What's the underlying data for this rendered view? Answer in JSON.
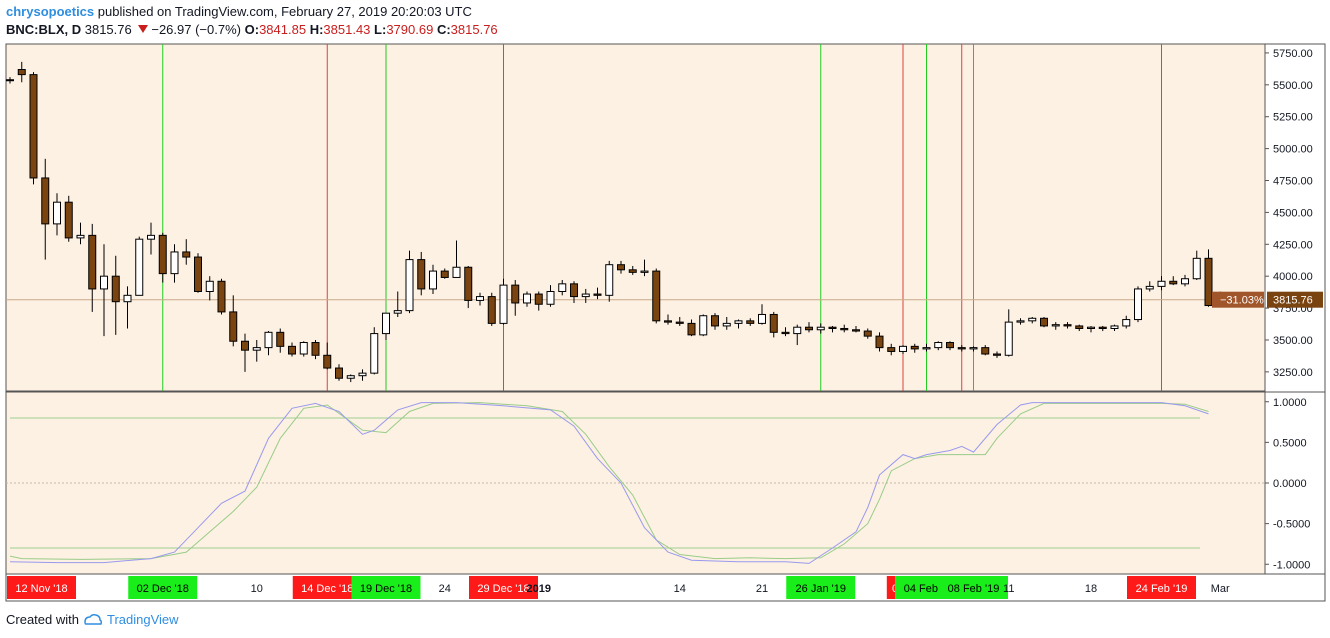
{
  "header": {
    "author": "chrysopoetics",
    "published_text": "published on TradingView.com, February 27, 2019 20:20:03 UTC",
    "symbol": "BNC:BLX, D",
    "last_price": "3815.76",
    "change": "−26.97 (−0.7%)",
    "o_label": "O:",
    "o_value": "3841.85",
    "h_label": "H:",
    "h_value": "3851.43",
    "l_label": "L:",
    "l_value": "3790.69",
    "c_label": "C:",
    "c_value": "3815.76"
  },
  "footer": {
    "created_with": "Created with",
    "brand": "TradingView"
  },
  "colors": {
    "background": "#fdf1e3",
    "bear_body": "#7a4410",
    "bull_body": "#ffffff",
    "candle_outline": "#000000",
    "green_line": "#22cc22",
    "red_line": "#e04040",
    "stoch_k": "#9999ee",
    "stoch_d": "#99cc88",
    "price_tag": "#7a4410",
    "pct_tag": "#a0552a"
  },
  "chart_data": {
    "type": "candlestick",
    "price_axis": {
      "ylim": [
        3100,
        5820
      ],
      "ticks": [
        3250,
        3500,
        3750,
        4000,
        4250,
        4500,
        4750,
        5000,
        5250,
        5500,
        5750
      ],
      "tick_labels": [
        "3250.00",
        "3500.00",
        "3750.00",
        "4000.00",
        "4250.00",
        "4500.00",
        "4750.00",
        "5000.00",
        "5250.00",
        "5500.00",
        "5750.00"
      ]
    },
    "last_price_label": "3815.76",
    "change_pct_label": "−31.03%",
    "candles": [
      {
        "o": 5540,
        "h": 5560,
        "l": 5510,
        "c": 5540
      },
      {
        "o": 5620,
        "h": 5680,
        "l": 5520,
        "c": 5580
      },
      {
        "o": 5580,
        "h": 5600,
        "l": 4720,
        "c": 4770
      },
      {
        "o": 4770,
        "h": 4920,
        "l": 4130,
        "c": 4410
      },
      {
        "o": 4410,
        "h": 4650,
        "l": 4320,
        "c": 4580
      },
      {
        "o": 4580,
        "h": 4630,
        "l": 4270,
        "c": 4300
      },
      {
        "o": 4300,
        "h": 4420,
        "l": 4250,
        "c": 4320
      },
      {
        "o": 4320,
        "h": 4410,
        "l": 3720,
        "c": 3900
      },
      {
        "o": 3900,
        "h": 4250,
        "l": 3530,
        "c": 4000
      },
      {
        "o": 4000,
        "h": 4160,
        "l": 3540,
        "c": 3800
      },
      {
        "o": 3800,
        "h": 3920,
        "l": 3590,
        "c": 3850
      },
      {
        "o": 3850,
        "h": 4310,
        "l": 3850,
        "c": 4290
      },
      {
        "o": 4290,
        "h": 4420,
        "l": 4170,
        "c": 4320
      },
      {
        "o": 4320,
        "h": 4340,
        "l": 3950,
        "c": 4020
      },
      {
        "o": 4020,
        "h": 4250,
        "l": 3950,
        "c": 4190
      },
      {
        "o": 4190,
        "h": 4290,
        "l": 4090,
        "c": 4150
      },
      {
        "o": 4150,
        "h": 4180,
        "l": 3870,
        "c": 3880
      },
      {
        "o": 3880,
        "h": 4000,
        "l": 3810,
        "c": 3960
      },
      {
        "o": 3960,
        "h": 3980,
        "l": 3700,
        "c": 3720
      },
      {
        "o": 3720,
        "h": 3850,
        "l": 3450,
        "c": 3490
      },
      {
        "o": 3490,
        "h": 3550,
        "l": 3250,
        "c": 3420
      },
      {
        "o": 3420,
        "h": 3500,
        "l": 3330,
        "c": 3440
      },
      {
        "o": 3440,
        "h": 3570,
        "l": 3380,
        "c": 3560
      },
      {
        "o": 3560,
        "h": 3590,
        "l": 3400,
        "c": 3450
      },
      {
        "o": 3450,
        "h": 3480,
        "l": 3370,
        "c": 3390
      },
      {
        "o": 3390,
        "h": 3490,
        "l": 3370,
        "c": 3480
      },
      {
        "o": 3480,
        "h": 3500,
        "l": 3350,
        "c": 3380
      },
      {
        "o": 3380,
        "h": 3480,
        "l": 3270,
        "c": 3280
      },
      {
        "o": 3280,
        "h": 3310,
        "l": 3180,
        "c": 3200
      },
      {
        "o": 3200,
        "h": 3230,
        "l": 3170,
        "c": 3220
      },
      {
        "o": 3220,
        "h": 3270,
        "l": 3180,
        "c": 3240
      },
      {
        "o": 3240,
        "h": 3600,
        "l": 3230,
        "c": 3550
      },
      {
        "o": 3550,
        "h": 3710,
        "l": 3500,
        "c": 3710
      },
      {
        "o": 3710,
        "h": 3880,
        "l": 3680,
        "c": 3730
      },
      {
        "o": 3730,
        "h": 4200,
        "l": 3710,
        "c": 4130
      },
      {
        "o": 4130,
        "h": 4190,
        "l": 3850,
        "c": 3900
      },
      {
        "o": 3900,
        "h": 4090,
        "l": 3860,
        "c": 4040
      },
      {
        "o": 4040,
        "h": 4060,
        "l": 3980,
        "c": 3990
      },
      {
        "o": 3990,
        "h": 4280,
        "l": 3990,
        "c": 4070
      },
      {
        "o": 4070,
        "h": 4080,
        "l": 3750,
        "c": 3810
      },
      {
        "o": 3810,
        "h": 3870,
        "l": 3770,
        "c": 3840
      },
      {
        "o": 3840,
        "h": 3870,
        "l": 3610,
        "c": 3630
      },
      {
        "o": 3630,
        "h": 3980,
        "l": 3620,
        "c": 3930
      },
      {
        "o": 3930,
        "h": 3970,
        "l": 3690,
        "c": 3790
      },
      {
        "o": 3790,
        "h": 3880,
        "l": 3760,
        "c": 3860
      },
      {
        "o": 3860,
        "h": 3880,
        "l": 3730,
        "c": 3780
      },
      {
        "o": 3780,
        "h": 3930,
        "l": 3760,
        "c": 3880
      },
      {
        "o": 3880,
        "h": 3970,
        "l": 3850,
        "c": 3940
      },
      {
        "o": 3940,
        "h": 3960,
        "l": 3790,
        "c": 3840
      },
      {
        "o": 3840,
        "h": 3900,
        "l": 3790,
        "c": 3860
      },
      {
        "o": 3860,
        "h": 3910,
        "l": 3820,
        "c": 3850
      },
      {
        "o": 3850,
        "h": 4120,
        "l": 3800,
        "c": 4090
      },
      {
        "o": 4090,
        "h": 4120,
        "l": 4020,
        "c": 4050
      },
      {
        "o": 4050,
        "h": 4080,
        "l": 4010,
        "c": 4030
      },
      {
        "o": 4030,
        "h": 4130,
        "l": 4000,
        "c": 4040
      },
      {
        "o": 4040,
        "h": 4060,
        "l": 3630,
        "c": 3650
      },
      {
        "o": 3650,
        "h": 3700,
        "l": 3620,
        "c": 3640
      },
      {
        "o": 3640,
        "h": 3680,
        "l": 3610,
        "c": 3630
      },
      {
        "o": 3630,
        "h": 3660,
        "l": 3530,
        "c": 3540
      },
      {
        "o": 3540,
        "h": 3700,
        "l": 3530,
        "c": 3690
      },
      {
        "o": 3690,
        "h": 3710,
        "l": 3580,
        "c": 3610
      },
      {
        "o": 3610,
        "h": 3680,
        "l": 3580,
        "c": 3630
      },
      {
        "o": 3630,
        "h": 3660,
        "l": 3590,
        "c": 3650
      },
      {
        "o": 3650,
        "h": 3670,
        "l": 3610,
        "c": 3630
      },
      {
        "o": 3630,
        "h": 3780,
        "l": 3620,
        "c": 3700
      },
      {
        "o": 3700,
        "h": 3720,
        "l": 3520,
        "c": 3560
      },
      {
        "o": 3560,
        "h": 3600,
        "l": 3530,
        "c": 3550
      },
      {
        "o": 3550,
        "h": 3620,
        "l": 3460,
        "c": 3600
      },
      {
        "o": 3600,
        "h": 3640,
        "l": 3560,
        "c": 3580
      },
      {
        "o": 3580,
        "h": 3630,
        "l": 3550,
        "c": 3600
      },
      {
        "o": 3600,
        "h": 3610,
        "l": 3560,
        "c": 3590
      },
      {
        "o": 3590,
        "h": 3620,
        "l": 3560,
        "c": 3580
      },
      {
        "o": 3580,
        "h": 3610,
        "l": 3560,
        "c": 3570
      },
      {
        "o": 3570,
        "h": 3590,
        "l": 3510,
        "c": 3530
      },
      {
        "o": 3530,
        "h": 3560,
        "l": 3410,
        "c": 3440
      },
      {
        "o": 3440,
        "h": 3470,
        "l": 3380,
        "c": 3410
      },
      {
        "o": 3410,
        "h": 3460,
        "l": 3390,
        "c": 3450
      },
      {
        "o": 3450,
        "h": 3470,
        "l": 3400,
        "c": 3430
      },
      {
        "o": 3430,
        "h": 3470,
        "l": 3410,
        "c": 3440
      },
      {
        "o": 3440,
        "h": 3490,
        "l": 3420,
        "c": 3480
      },
      {
        "o": 3480,
        "h": 3490,
        "l": 3420,
        "c": 3440
      },
      {
        "o": 3440,
        "h": 3460,
        "l": 3410,
        "c": 3430
      },
      {
        "o": 3430,
        "h": 3450,
        "l": 3410,
        "c": 3440
      },
      {
        "o": 3440,
        "h": 3460,
        "l": 3380,
        "c": 3390
      },
      {
        "o": 3390,
        "h": 3410,
        "l": 3360,
        "c": 3380
      },
      {
        "o": 3380,
        "h": 3740,
        "l": 3370,
        "c": 3640
      },
      {
        "o": 3640,
        "h": 3670,
        "l": 3620,
        "c": 3650
      },
      {
        "o": 3650,
        "h": 3680,
        "l": 3630,
        "c": 3670
      },
      {
        "o": 3670,
        "h": 3680,
        "l": 3600,
        "c": 3610
      },
      {
        "o": 3610,
        "h": 3640,
        "l": 3580,
        "c": 3620
      },
      {
        "o": 3620,
        "h": 3640,
        "l": 3590,
        "c": 3610
      },
      {
        "o": 3610,
        "h": 3620,
        "l": 3570,
        "c": 3590
      },
      {
        "o": 3590,
        "h": 3610,
        "l": 3560,
        "c": 3600
      },
      {
        "o": 3600,
        "h": 3610,
        "l": 3570,
        "c": 3590
      },
      {
        "o": 3590,
        "h": 3620,
        "l": 3570,
        "c": 3610
      },
      {
        "o": 3610,
        "h": 3690,
        "l": 3590,
        "c": 3660
      },
      {
        "o": 3660,
        "h": 3920,
        "l": 3640,
        "c": 3900
      },
      {
        "o": 3900,
        "h": 3960,
        "l": 3880,
        "c": 3920
      },
      {
        "o": 3920,
        "h": 4000,
        "l": 3890,
        "c": 3960
      },
      {
        "o": 3960,
        "h": 4000,
        "l": 3930,
        "c": 3940
      },
      {
        "o": 3940,
        "h": 4010,
        "l": 3920,
        "c": 3980
      },
      {
        "o": 3980,
        "h": 4200,
        "l": 3970,
        "c": 4140
      },
      {
        "o": 4140,
        "h": 4210,
        "l": 3760,
        "c": 3770
      },
      {
        "o": 3770,
        "h": 3880,
        "l": 3760,
        "c": 3840
      },
      {
        "o": 3841.85,
        "h": 3851.43,
        "l": 3790.69,
        "c": 3815.76
      }
    ],
    "x_ticks": [
      {
        "i": -2,
        "label": "12 Nov '18",
        "kind": "red"
      },
      {
        "i": 13,
        "label": "02 Dec '18",
        "kind": "green"
      },
      {
        "i": 21,
        "label": "10",
        "kind": "plain"
      },
      {
        "i": 27,
        "label": "14 Dec '18",
        "kind": "red"
      },
      {
        "i": 32,
        "label": "19 Dec '18",
        "kind": "green"
      },
      {
        "i": 37,
        "label": "24",
        "kind": "plain"
      },
      {
        "i": 42,
        "label": "29 Dec '18",
        "kind": "red"
      },
      {
        "i": 45,
        "label": "2019",
        "kind": "plain"
      },
      {
        "i": 57,
        "label": "14",
        "kind": "plain"
      },
      {
        "i": 64,
        "label": "21",
        "kind": "plain"
      },
      {
        "i": 69,
        "label": "26 Jan '19",
        "kind": "green"
      },
      {
        "i": 76,
        "label": "02 F",
        "kind": "red"
      },
      {
        "i": 78,
        "label": "04 Feb '1",
        "kind": "green"
      },
      {
        "i": 82,
        "label": "08 Feb '19",
        "kind": "green"
      },
      {
        "i": 85,
        "label": "11",
        "kind": "plain"
      },
      {
        "i": 92,
        "label": "18",
        "kind": "plain"
      },
      {
        "i": 98,
        "label": "24 Feb '19",
        "kind": "red"
      },
      {
        "i": 103,
        "label": "Mar",
        "kind": "plain"
      }
    ],
    "signal_lines": [
      {
        "i": 13,
        "kind": "green"
      },
      {
        "i": 27,
        "kind": "red"
      },
      {
        "i": 32,
        "kind": "green"
      },
      {
        "i": 42,
        "kind": "red"
      },
      {
        "i": 69,
        "kind": "green"
      },
      {
        "i": 76,
        "kind": "red"
      },
      {
        "i": 78,
        "kind": "green"
      },
      {
        "i": 81,
        "kind": "red"
      },
      {
        "i": 82,
        "kind": "green"
      },
      {
        "i": 98,
        "kind": "red"
      }
    ],
    "oscillator": {
      "ylim": [
        -1.12,
        1.12
      ],
      "ticks": [
        1,
        0.5,
        0,
        -0.5,
        -1
      ],
      "tick_labels": [
        "1.0000",
        "0.5000",
        "0.0000",
        "-0.5000",
        "-1.0000"
      ],
      "upper_band": 0.8,
      "lower_band": -0.8,
      "k_line": [
        [
          0,
          -0.97
        ],
        [
          4,
          -0.98
        ],
        [
          8,
          -0.98
        ],
        [
          12,
          -0.93
        ],
        [
          14,
          -0.85
        ],
        [
          16,
          -0.55
        ],
        [
          18,
          -0.25
        ],
        [
          20,
          -0.1
        ],
        [
          22,
          0.55
        ],
        [
          24,
          0.92
        ],
        [
          26,
          0.98
        ],
        [
          28,
          0.88
        ],
        [
          30,
          0.6
        ],
        [
          31,
          0.65
        ],
        [
          33,
          0.9
        ],
        [
          35,
          0.99
        ],
        [
          38,
          0.99
        ],
        [
          42,
          0.95
        ],
        [
          46,
          0.9
        ],
        [
          48,
          0.7
        ],
        [
          50,
          0.3
        ],
        [
          52,
          0
        ],
        [
          54,
          -0.55
        ],
        [
          56,
          -0.85
        ],
        [
          58,
          -0.95
        ],
        [
          62,
          -0.97
        ],
        [
          66,
          -0.97
        ],
        [
          68,
          -0.99
        ],
        [
          70,
          -0.8
        ],
        [
          72,
          -0.6
        ],
        [
          73,
          -0.3
        ],
        [
          74,
          0.1
        ],
        [
          76,
          0.35
        ],
        [
          77,
          0.3
        ],
        [
          78,
          0.35
        ],
        [
          80,
          0.4
        ],
        [
          81,
          0.45
        ],
        [
          82,
          0.38
        ],
        [
          84,
          0.72
        ],
        [
          86,
          0.96
        ],
        [
          87,
          0.99
        ],
        [
          95,
          0.99
        ],
        [
          98,
          0.99
        ],
        [
          100,
          0.95
        ],
        [
          102,
          0.85
        ]
      ],
      "d_line": [
        [
          0,
          -0.9
        ],
        [
          1,
          -0.93
        ],
        [
          6,
          -0.94
        ],
        [
          12,
          -0.93
        ],
        [
          15,
          -0.85
        ],
        [
          17,
          -0.6
        ],
        [
          19,
          -0.35
        ],
        [
          21,
          -0.05
        ],
        [
          23,
          0.55
        ],
        [
          25,
          0.92
        ],
        [
          27,
          0.96
        ],
        [
          30,
          0.65
        ],
        [
          32,
          0.62
        ],
        [
          34,
          0.88
        ],
        [
          36,
          0.98
        ],
        [
          40,
          0.99
        ],
        [
          44,
          0.95
        ],
        [
          47,
          0.88
        ],
        [
          49,
          0.6
        ],
        [
          51,
          0.2
        ],
        [
          53,
          -0.15
        ],
        [
          55,
          -0.7
        ],
        [
          57,
          -0.88
        ],
        [
          60,
          -0.93
        ],
        [
          63,
          -0.92
        ],
        [
          66,
          -0.93
        ],
        [
          69,
          -0.92
        ],
        [
          71,
          -0.75
        ],
        [
          73,
          -0.5
        ],
        [
          74,
          -0.2
        ],
        [
          75,
          0.15
        ],
        [
          77,
          0.3
        ],
        [
          79,
          0.35
        ],
        [
          81,
          0.35
        ],
        [
          83,
          0.35
        ],
        [
          84,
          0.55
        ],
        [
          86,
          0.85
        ],
        [
          88,
          0.98
        ],
        [
          95,
          0.98
        ],
        [
          98,
          0.98
        ],
        [
          100,
          0.97
        ],
        [
          102,
          0.88
        ]
      ]
    }
  }
}
